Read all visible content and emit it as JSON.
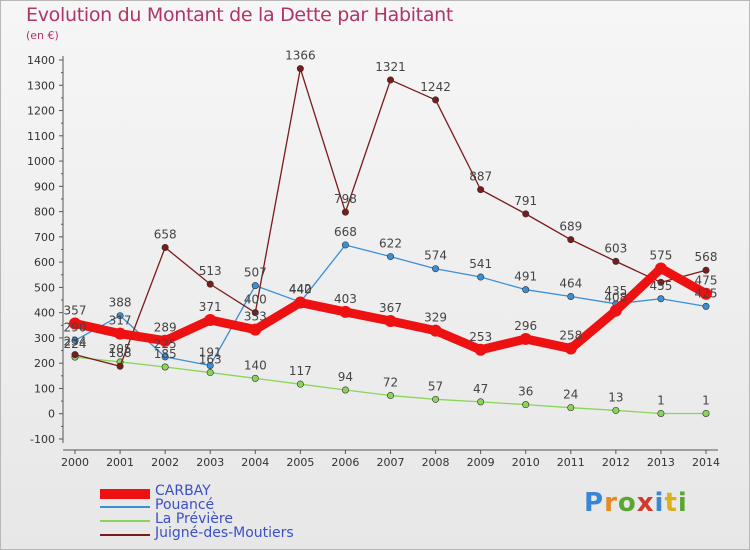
{
  "title": "Evolution du Montant de la Dette par Habitant",
  "subtitle": "(en €)",
  "brand": {
    "letters": [
      "P",
      "r",
      "o",
      "x",
      "i",
      "t",
      "i"
    ],
    "colors": [
      "#3a86d6",
      "#e58a1c",
      "#5aa632",
      "#d33a2c",
      "#3a86d6",
      "#d9b11a",
      "#5aa632"
    ]
  },
  "chart_data": {
    "type": "line",
    "title": "Evolution du Montant de la Dette par Habitant",
    "ylabel": "(en €)",
    "x": [
      "2000",
      "2001",
      "2002",
      "2003",
      "2004",
      "2005",
      "2006",
      "2007",
      "2008",
      "2009",
      "2010",
      "2011",
      "2012",
      "2013",
      "2014"
    ],
    "yticks": [
      "-100",
      "0",
      "100",
      "200",
      "300",
      "400",
      "500",
      "600",
      "700",
      "800",
      "900",
      "1000",
      "1100",
      "1200",
      "1300",
      "1400"
    ],
    "ylim": [
      -100,
      1400
    ],
    "grid": false,
    "legend_position": "bottom-left",
    "series": [
      {
        "name": "CARBAY",
        "color": "#ee1111",
        "values": [
          357,
          317,
          289,
          371,
          333,
          440,
          403,
          367,
          329,
          253,
          296,
          258,
          408,
          575,
          475
        ],
        "labels": [
          "357",
          "317",
          "289",
          "371",
          "333",
          "440",
          "403",
          "367",
          "329",
          "253",
          "296",
          "258",
          "408",
          "575",
          "475"
        ]
      },
      {
        "name": "Pouancé",
        "color": "#3b8fd5",
        "values": [
          290,
          388,
          225,
          191,
          507,
          442,
          668,
          622,
          574,
          541,
          491,
          464,
          435,
          455,
          425
        ],
        "labels": [
          "290",
          "388",
          "225",
          "191",
          "507",
          "442",
          "668",
          "622",
          "574",
          "541",
          "491",
          "464",
          "435",
          "455",
          "425"
        ]
      },
      {
        "name": "La Prévière",
        "color": "#8ad45a",
        "values": [
          224,
          205,
          185,
          163,
          140,
          117,
          94,
          72,
          57,
          47,
          36,
          24,
          13,
          1,
          1
        ],
        "labels": [
          "224",
          "205",
          "185",
          "163",
          "140",
          "117",
          "94",
          "72",
          "57",
          "47",
          "36",
          "24",
          "13",
          "1",
          "1"
        ]
      },
      {
        "name": "Juigné-des-Moutiers",
        "color": "#7a1a1a",
        "values": [
          234,
          188,
          658,
          513,
          400,
          1366,
          798,
          1321,
          1242,
          887,
          791,
          689,
          603,
          520,
          568
        ],
        "labels": [
          "234",
          "188",
          "658",
          "513",
          "400",
          "1366",
          "798",
          "1321",
          "1242",
          "887",
          "791",
          "689",
          "603",
          "",
          "568"
        ]
      }
    ]
  }
}
